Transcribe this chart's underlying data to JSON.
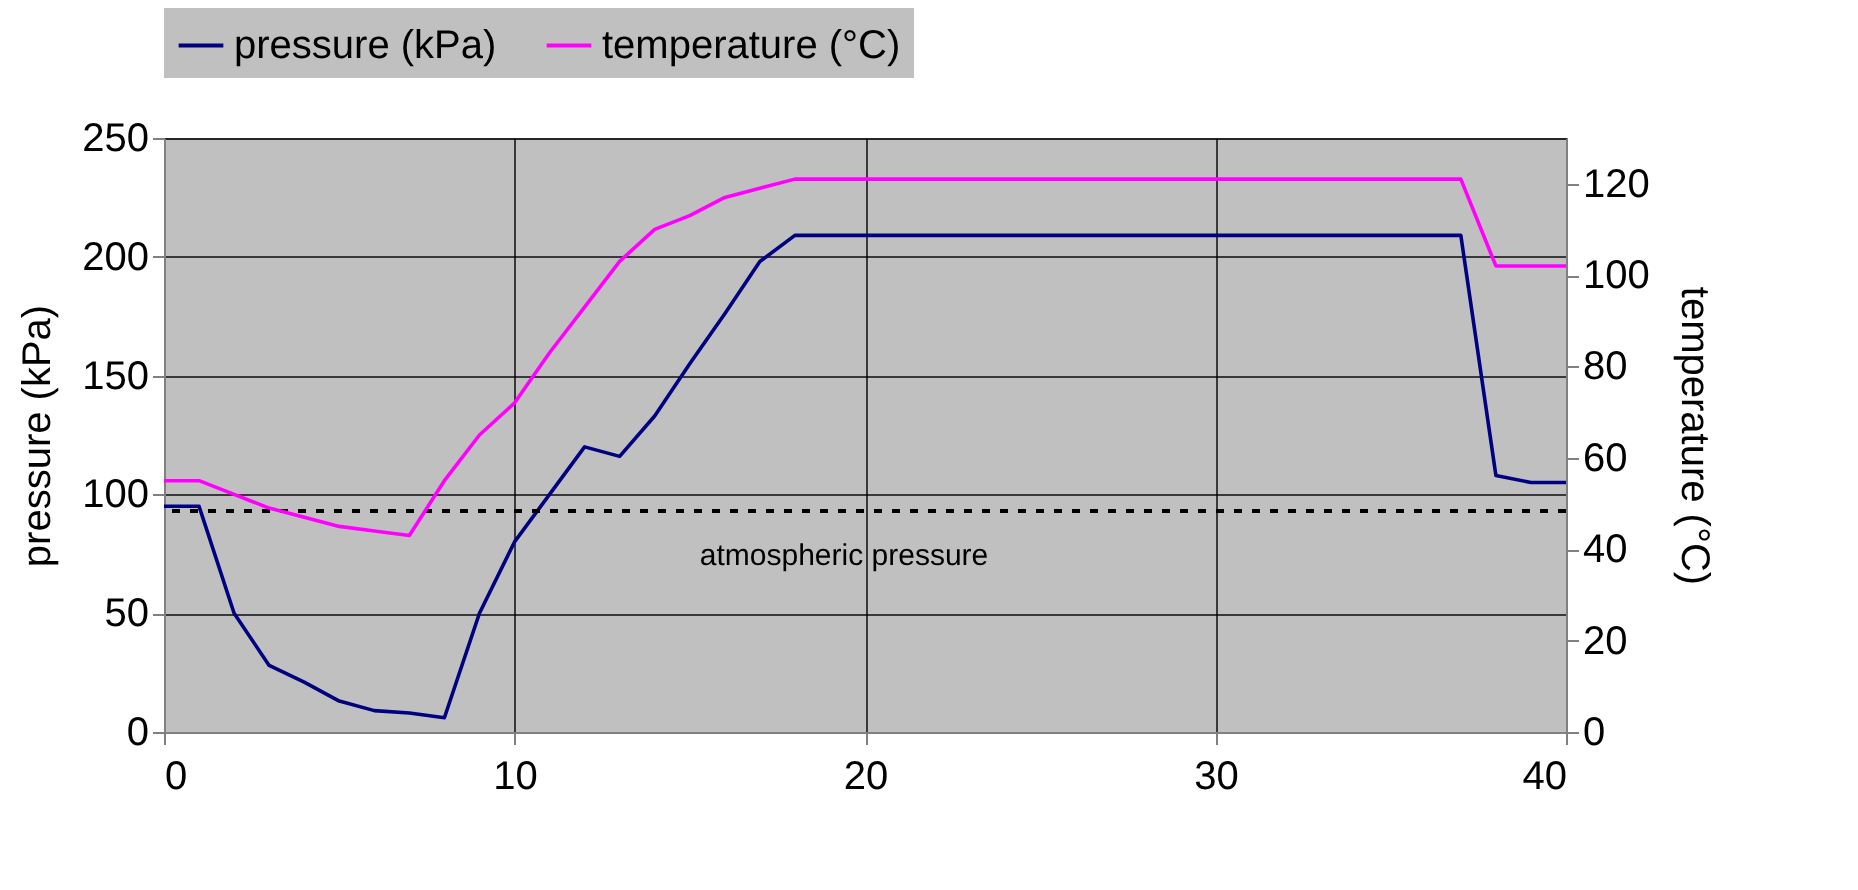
{
  "chart_data": {
    "type": "line",
    "ylabel": "pressure (kPa)",
    "y2label": "temperature (°C)",
    "x": [
      0,
      1,
      2,
      3,
      4,
      5,
      6,
      7,
      8,
      9,
      10,
      11,
      12,
      13,
      14,
      15,
      16,
      17,
      18,
      37,
      38,
      39,
      40
    ],
    "series": [
      {
        "name": "pressure (kPa)",
        "color": "#000080",
        "values": [
          95,
          95,
          50,
          28,
          21,
          13,
          9,
          8,
          6,
          50,
          80,
          100,
          120,
          116,
          133,
          155,
          176,
          198,
          209,
          209,
          108,
          105,
          105
        ]
      },
      {
        "name": "temperature (°C)",
        "color": "#ff00ff",
        "axis": "y2",
        "values": [
          55,
          55,
          52,
          49,
          47,
          45,
          44,
          43,
          55,
          65,
          72,
          83,
          93,
          103,
          110,
          113,
          117,
          119,
          121,
          121,
          102,
          102,
          102
        ]
      }
    ],
    "xlim": [
      0,
      40
    ],
    "xticks": [
      0,
      10,
      20,
      30,
      40
    ],
    "ylim": [
      0,
      250
    ],
    "yticks": [
      0,
      50,
      100,
      150,
      200,
      250
    ],
    "y2lim": [
      0,
      130
    ],
    "y2ticks": [
      0,
      20,
      40,
      60,
      80,
      100,
      120
    ],
    "ref_lines": [
      {
        "axis": "y",
        "value": 93,
        "label": "atmospheric pressure",
        "color": "#000000",
        "line_style": "dashed"
      }
    ],
    "grid": true,
    "legend": "top"
  }
}
